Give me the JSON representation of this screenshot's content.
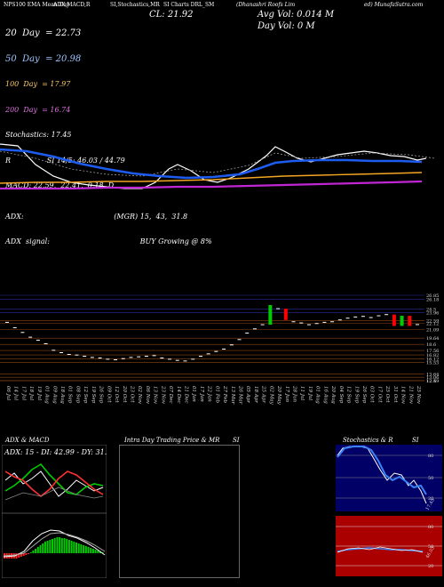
{
  "header": {
    "left": "NPS100 EMA Mean Day",
    "mid1": "ADX,MACD,R",
    "mid2": "SI,Stochastics,MR",
    "mid3": "SI Charts DRL_SM",
    "right1": "(Dhanashri Roofs Lim",
    "right2": "ed) MunafaSutra.com"
  },
  "indicators": {
    "ema20": "20  Day  = 22.73",
    "ema50": "50  Day  = 20.98",
    "ema100": "100  Day  = 17.97",
    "ema200": "200  Day  = 16.74",
    "stoch": "Stochastics: 17.45",
    "rsi": "R                SI 14/5: 46.03 / 44.79",
    "macd": "MACD: 22.59,  22.41,  0.18  D",
    "adx": "ADX:                                        (MGR) 15,  43,  31.8",
    "signal": "ADX  signal:                                        BUY Growing @ 8%",
    "close": "CL: 21.92",
    "avgvol": "Avg Vol: 0.014   M",
    "dayvol": "Day Vol: 0   M"
  },
  "colors": {
    "ema20": "#ffffff",
    "ema50": "#1e5cf0",
    "ema100": "#f5a623",
    "ema200": "#c026d3",
    "up": "#00cc00",
    "down": "#ff0000",
    "priceLine": "#8b4513",
    "greyLine": "#888888"
  },
  "panels": {
    "adx_title": "ADX  & MACD",
    "adx_value": "ADX: 15 - DI: 42.99 - DY: 31.78",
    "intra_title": "Intra  Day Trading Price  & MR",
    "intra_si": "SI",
    "stoch_title": "Stochastics & R",
    "stoch_si": "SI",
    "stoch_ticks": [
      "80",
      "50",
      "20"
    ],
    "stoch_value": "17.45",
    "rsi_ticks": [
      "80",
      "50",
      "20"
    ],
    "rsi_value": "46.03"
  },
  "chart_data": {
    "type": "candlestick",
    "price_ticks": [
      "26.85",
      "26.18",
      "24.5",
      "23.96",
      "22.59",
      "22.12",
      "21.09",
      "19.64",
      "18.6",
      "17.56",
      "16.82",
      "16.12",
      "15.53",
      "13.64",
      "13.06",
      "12.5",
      "12.49"
    ],
    "dates": [
      "06 Jul",
      "14 Jul",
      "17 Jul",
      "18 Jul",
      "19 Jul",
      "01 Aug",
      "09 Aug",
      "18 Aug",
      "01 Sep",
      "08 Sep",
      "12 Sep",
      "19 Sep",
      "26 Sep",
      "09 Oct",
      "12 Oct",
      "20 Oct",
      "23 Oct",
      "02 Nov",
      "06 Nov",
      "13 Nov",
      "23 Nov",
      "07 Dec",
      "14 Dec",
      "21 Dec",
      "01 Jan",
      "17 Jan",
      "22 Jan",
      "01 Feb",
      "27 Feb",
      "13 Mar",
      "26 Mar",
      "05 Apr",
      "18 Apr",
      "25 Apr",
      "02 May",
      "20 May",
      "17 Jun",
      "28 Jun",
      "11 Jul",
      "19 Jul",
      "01 Aug",
      "16 Aug",
      "20 Aug",
      "04 Sep",
      "12 Sep",
      "19 Sep",
      "26 Sep",
      "03 Oct",
      "17 Oct",
      "25 Oct",
      "31 Oct",
      "14 Nov",
      "21 Nov",
      "25 Nov"
    ],
    "close": [
      22.3,
      21.4,
      20.6,
      19.8,
      19.3,
      18.7,
      17.6,
      17.2,
      16.9,
      16.8,
      16.6,
      16.4,
      16.3,
      16.1,
      16.0,
      16.2,
      16.4,
      16.5,
      16.6,
      16.7,
      16.3,
      16.1,
      15.9,
      15.8,
      16.1,
      16.6,
      17.0,
      17.4,
      17.8,
      18.5,
      19.4,
      20.5,
      21.2,
      21.9,
      25.2,
      24.6,
      22.7,
      22.4,
      22.2,
      21.9,
      22.1,
      22.3,
      22.4,
      22.7,
      23.0,
      23.2,
      23.3,
      23.1,
      23.4,
      23.6,
      21.7,
      23.4,
      21.7,
      21.92
    ]
  }
}
